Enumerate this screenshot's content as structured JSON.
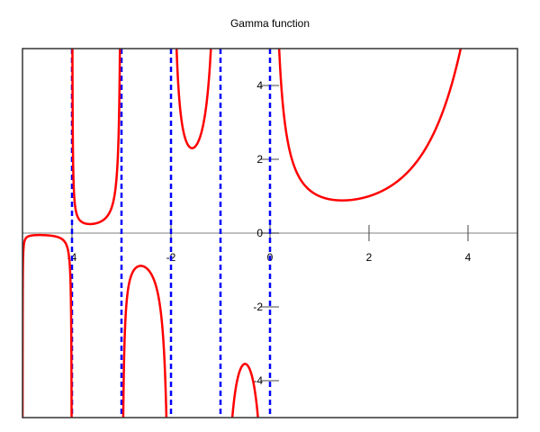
{
  "chart_data": {
    "type": "line",
    "title": "Gamma function",
    "function": "gamma",
    "xlabel": "",
    "ylabel": "",
    "xlim": [
      -5,
      5
    ],
    "ylim": [
      -5,
      5
    ],
    "x_ticks": [
      -4,
      -2,
      0,
      2,
      4
    ],
    "x_tick_labels": [
      "-4",
      "-2",
      "0",
      "2",
      "4"
    ],
    "y_ticks": [
      4,
      2,
      0,
      -2,
      -4
    ],
    "y_tick_labels": [
      "4",
      "2",
      "0",
      "-2",
      "-4"
    ],
    "grid": false,
    "series": [
      {
        "color": "#ff0000",
        "style": "solid",
        "key_points": [
          {
            "x": -4.5,
            "y": -0.06
          },
          {
            "x": -3.5,
            "y": 0.27
          },
          {
            "x": -2.5,
            "y": -0.945
          },
          {
            "x": -1.5,
            "y": 2.363
          },
          {
            "x": -0.5,
            "y": -3.545
          },
          {
            "x": 1.4616,
            "y": 0.8856
          },
          {
            "x": 1,
            "y": 1
          },
          {
            "x": 2,
            "y": 1
          },
          {
            "x": 3,
            "y": 2
          },
          {
            "x": 4,
            "y": 6
          }
        ]
      }
    ],
    "asymptotes": {
      "x": [
        -4,
        -3,
        -2,
        -1,
        0
      ],
      "color": "#0000ff",
      "style": "dashed"
    }
  }
}
